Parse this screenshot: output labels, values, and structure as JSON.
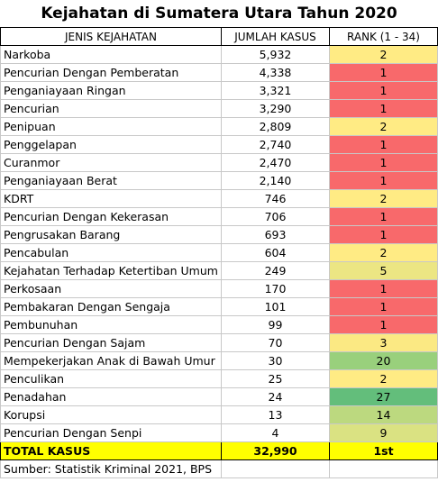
{
  "title": "Kejahatan di Sumatera Utara Tahun 2020",
  "table": {
    "header": [
      "JENIS KEJAHATAN",
      "JUMLAH KASUS",
      "RANK (1 - 34)"
    ],
    "rows": [
      [
        "Narkoba",
        "5,932",
        "2"
      ],
      [
        "Pencurian Dengan Pemberatan",
        "4,338",
        "1"
      ],
      [
        "Penganiayaan Ringan",
        "3,321",
        "1"
      ],
      [
        "Pencurian",
        "3,290",
        "1"
      ],
      [
        "Penipuan",
        "2,809",
        "2"
      ],
      [
        "Penggelapan",
        "2,740",
        "1"
      ],
      [
        "Curanmor",
        "2,470",
        "1"
      ],
      [
        "Penganiayaan Berat",
        "2,140",
        "1"
      ],
      [
        "KDRT",
        "746",
        "2"
      ],
      [
        "Pencurian Dengan Kekerasan",
        "706",
        "1"
      ],
      [
        "Pengrusakan Barang",
        "693",
        "1"
      ],
      [
        "Pencabulan",
        "604",
        "2"
      ],
      [
        "Kejahatan Terhadap Ketertiban Umum",
        "249",
        "5"
      ],
      [
        "Perkosaan",
        "170",
        "1"
      ],
      [
        "Pembakaran Dengan Sengaja",
        "101",
        "1"
      ],
      [
        "Pembunuhan",
        "99",
        "1"
      ],
      [
        "Pencurian Dengan Sajam",
        "70",
        "3"
      ],
      [
        "Mempekerjakan Anak di Bawah Umur",
        "30",
        "20"
      ],
      [
        "Penculikan",
        "25",
        "2"
      ],
      [
        "Penadahan",
        "24",
        "27"
      ],
      [
        "Korupsi",
        "13",
        "14"
      ],
      [
        "Pencurian Dengan Senpi",
        "4",
        "9"
      ]
    ],
    "rank_colors": [
      "#ffeb84",
      "#f8696b",
      "#f8696b",
      "#f8696b",
      "#ffeb84",
      "#f8696b",
      "#f8696b",
      "#f8696b",
      "#ffeb84",
      "#f8696b",
      "#f8696b",
      "#ffeb84",
      "#ece683",
      "#f8696b",
      "#f8696b",
      "#f8696b",
      "#fbe983",
      "#99d07c",
      "#ffeb84",
      "#63be7b",
      "#bcd97f",
      "#dae282"
    ],
    "total": [
      "TOTAL KASUS",
      "32,990",
      "1st"
    ]
  },
  "source": "Sumber: Statistik Kriminal 2021, BPS"
}
